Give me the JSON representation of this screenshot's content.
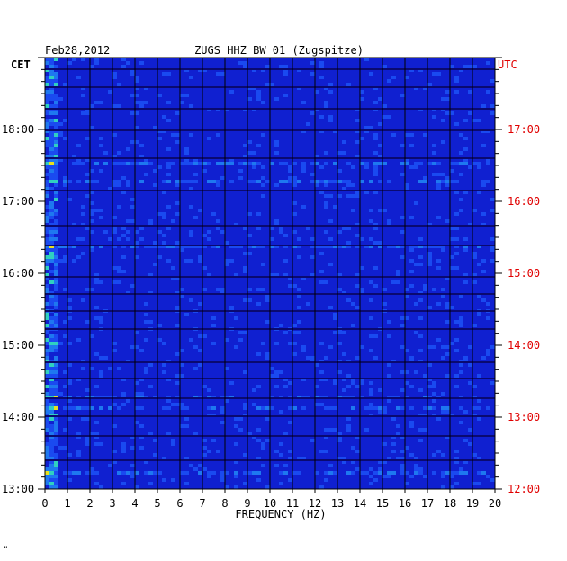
{
  "header": {
    "date": "Feb28,2012",
    "station": "ZUGS HHZ BW 01 (Zugspitze)"
  },
  "left_axis": {
    "label": "CET",
    "ticks": [
      "18:00",
      "17:00",
      "16:00",
      "15:00",
      "14:00",
      "13:00"
    ]
  },
  "right_axis": {
    "label": "UTC",
    "ticks": [
      "17:00",
      "16:00",
      "15:00",
      "14:00",
      "13:00",
      "12:00"
    ]
  },
  "colors": {
    "background": "#1020d0",
    "utc_text": "#e00000",
    "text": "#000000"
  },
  "chart_data": {
    "type": "heatmap",
    "title": "ZUGS HHZ BW 01 (Zugspitze)",
    "xlabel": "FREQUENCY (HZ)",
    "x_ticks": [
      "0",
      "1",
      "2",
      "3",
      "4",
      "5",
      "6",
      "7",
      "8",
      "9",
      "10",
      "11",
      "12",
      "13",
      "14",
      "15",
      "16",
      "17",
      "18",
      "19",
      "20"
    ],
    "x_range": [
      0,
      20
    ],
    "y_range_cet": [
      "13:00",
      "19:00"
    ],
    "y_range_utc": [
      "12:00",
      "18:00"
    ],
    "colorscale": [
      "dark blue",
      "blue",
      "cyan",
      "green",
      "yellow",
      "red"
    ],
    "grid": true
  },
  "footnote": "”"
}
